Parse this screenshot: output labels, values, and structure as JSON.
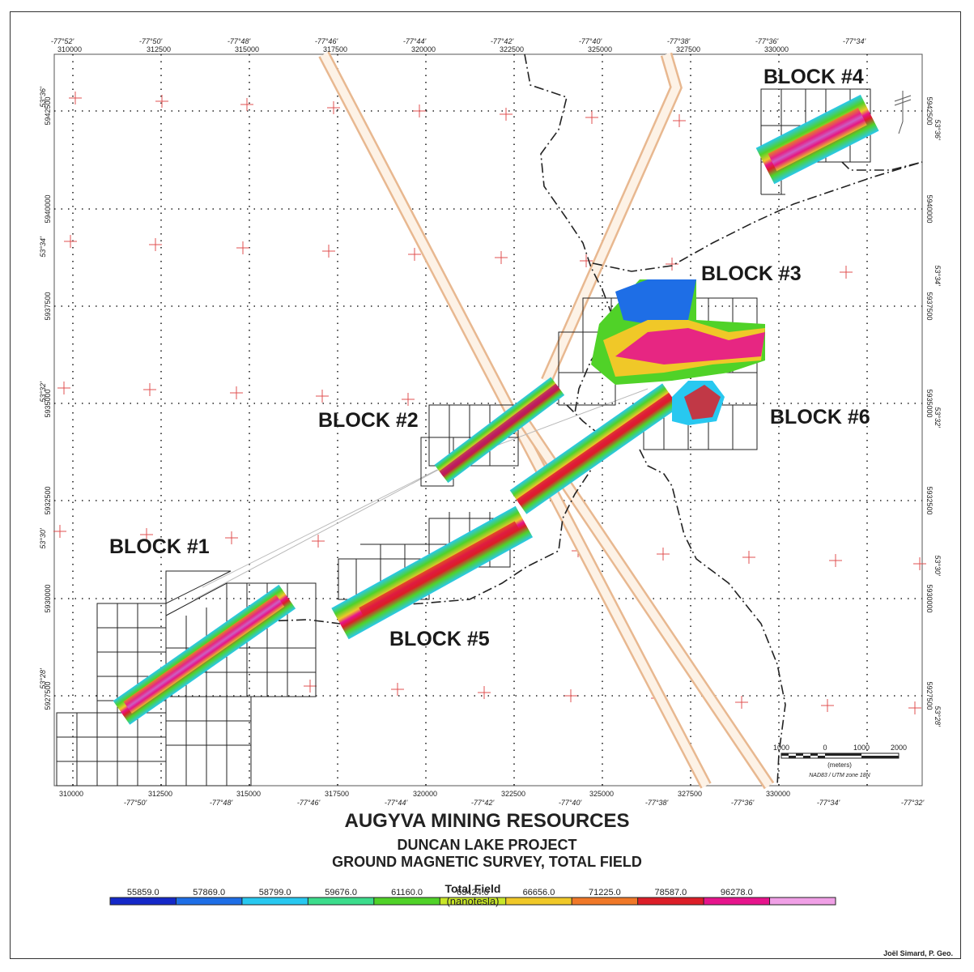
{
  "title": {
    "company": "AUGYVA MINING RESOURCES",
    "project": "DUNCAN LAKE PROJECT",
    "survey": "GROUND MAGNETIC SURVEY, TOTAL FIELD"
  },
  "author": "Joël Simard, P. Geo.",
  "blocks": [
    {
      "label": "BLOCK #1"
    },
    {
      "label": "BLOCK #2"
    },
    {
      "label": "BLOCK #3"
    },
    {
      "label": "BLOCK #4"
    },
    {
      "label": "BLOCK #5"
    },
    {
      "label": "BLOCK #6"
    }
  ],
  "axes": {
    "easting_labels": [
      "310000",
      "312500",
      "315000",
      "317500",
      "320000",
      "322500",
      "325000",
      "327500",
      "330000"
    ],
    "northing_labels": [
      "5927500",
      "5930000",
      "5932500",
      "5935000",
      "5937500",
      "5940000",
      "5942500"
    ],
    "lon_top": [
      "-77°52'",
      "-77°50'",
      "-77°48'",
      "-77°46'",
      "-77°44'",
      "-77°42'",
      "-77°40'",
      "-77°38'",
      "-77°36'",
      "-77°34'"
    ],
    "lon_bottom": [
      "-77°50'",
      "-77°48'",
      "-77°46'",
      "-77°44'",
      "-77°42'",
      "-77°40'",
      "-77°38'",
      "-77°36'",
      "-77°34'",
      "-77°32'"
    ],
    "lat_left": [
      "53°28'",
      "53°30'",
      "53°32'",
      "53°34'",
      "53°36'"
    ],
    "lat_right": [
      "53°28'",
      "53°30'",
      "53°32'",
      "53°34'",
      "53°36'"
    ]
  },
  "scale_bar": {
    "ticks": [
      "1000",
      "0",
      "1000",
      "2000"
    ],
    "unit": "(meters)",
    "projection": "NAD83 / UTM zone 18N"
  },
  "legend": {
    "title": "Total Field",
    "unit": "(nanotesla)",
    "values": [
      "55859.0",
      "57869.0",
      "58799.0",
      "59676.0",
      "61160.0",
      "63424.0",
      "66656.0",
      "71225.0",
      "78587.0",
      "96278.0"
    ],
    "colors": [
      "#1428c8",
      "#1e6ee6",
      "#28c8f0",
      "#3cdc8c",
      "#50d228",
      "#c8e628",
      "#f0c828",
      "#f07828",
      "#dc1e28",
      "#e6148c",
      "#f0a0e6"
    ]
  }
}
